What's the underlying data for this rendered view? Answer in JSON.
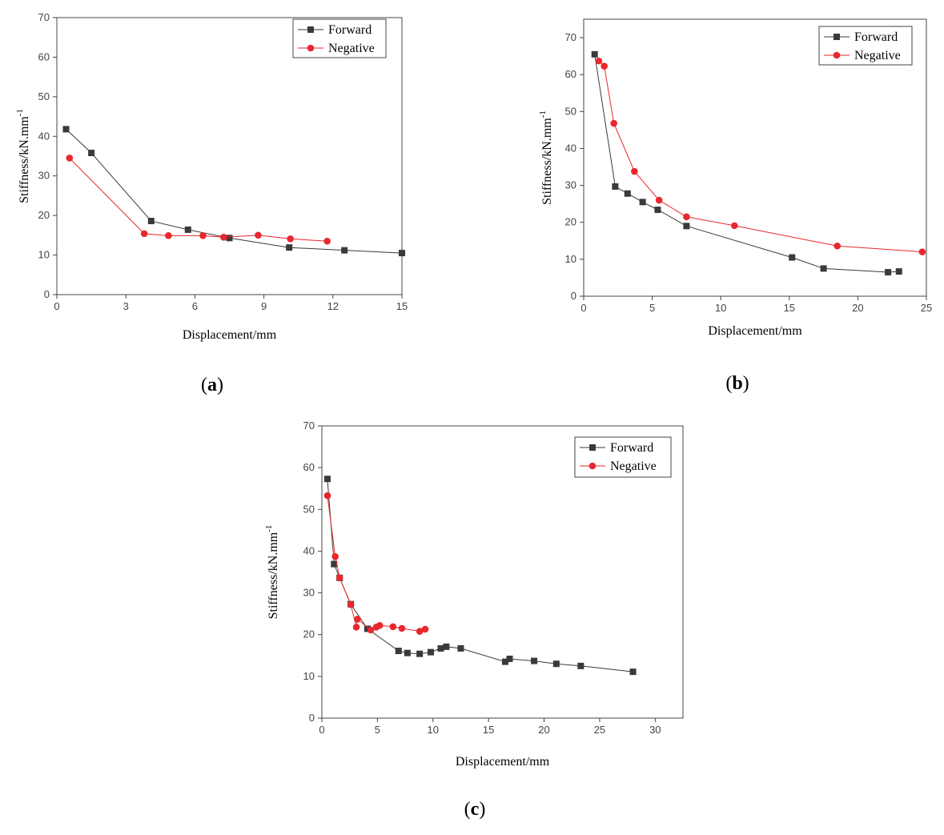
{
  "colors": {
    "forward": "#3a3a3a",
    "negative": "#e8272e",
    "axis": "#444444"
  },
  "chart_data": [
    {
      "id": "a",
      "type": "line",
      "caption_letter": "a",
      "xlabel": "Displacement/mm",
      "ylabel": "Stiffness/kN.mm",
      "ylabel_sup": "-1",
      "xlim": [
        0,
        15
      ],
      "ylim": [
        0,
        70
      ],
      "xticks": [
        "0",
        "3",
        "6",
        "9",
        "12",
        "15"
      ],
      "yticks": [
        "0",
        "10",
        "20",
        "30",
        "40",
        "50",
        "60",
        "70"
      ],
      "legend": [
        "Forward",
        "Negative"
      ],
      "series": [
        {
          "name": "Forward",
          "marker": "square",
          "x": [
            0.4,
            1.5,
            4.1,
            5.7,
            7.5,
            10.1,
            12.5,
            15.0
          ],
          "y": [
            41.8,
            35.8,
            18.6,
            16.4,
            14.3,
            11.9,
            11.2,
            10.5
          ]
        },
        {
          "name": "Negative",
          "marker": "circle",
          "x": [
            0.55,
            3.8,
            4.85,
            6.35,
            7.25,
            8.75,
            10.15,
            11.75
          ],
          "y": [
            34.5,
            15.4,
            14.9,
            14.9,
            14.5,
            15.0,
            14.1,
            13.5
          ]
        }
      ]
    },
    {
      "id": "b",
      "type": "line",
      "caption_letter": "b",
      "xlabel": "Displacement/mm",
      "ylabel": "Stiffness/kN.mm",
      "ylabel_sup": "-1",
      "xlim": [
        0,
        25
      ],
      "ylim": [
        0,
        75
      ],
      "xticks": [
        "0",
        "5",
        "10",
        "15",
        "20",
        "25"
      ],
      "yticks": [
        "0",
        "10",
        "20",
        "30",
        "40",
        "50",
        "60",
        "70"
      ],
      "legend": [
        "Forward",
        "Negative"
      ],
      "series": [
        {
          "name": "Forward",
          "marker": "square",
          "x": [
            0.8,
            2.3,
            3.2,
            4.3,
            5.4,
            7.5,
            15.2,
            17.5,
            22.2,
            23.0
          ],
          "y": [
            65.5,
            29.7,
            27.8,
            25.5,
            23.4,
            19.0,
            10.5,
            7.5,
            6.5,
            6.7
          ]
        },
        {
          "name": "Negative",
          "marker": "circle",
          "x": [
            1.1,
            1.5,
            2.2,
            3.7,
            5.5,
            7.5,
            11.0,
            18.5,
            24.7
          ],
          "y": [
            63.7,
            62.3,
            46.8,
            33.8,
            26.0,
            21.5,
            19.1,
            13.6,
            12.0
          ]
        }
      ]
    },
    {
      "id": "c",
      "type": "line",
      "caption_letter": "c",
      "xlabel": "Displacement/mm",
      "ylabel": "Stiffness/kN.mm",
      "ylabel_sup": "-1",
      "xlim": [
        0,
        32.5
      ],
      "ylim": [
        0,
        70
      ],
      "xticks": [
        "0",
        "5",
        "10",
        "15",
        "20",
        "25",
        "30"
      ],
      "yticks": [
        "0",
        "10",
        "20",
        "30",
        "40",
        "50",
        "60",
        "70"
      ],
      "legend": [
        "Forward",
        "Negative"
      ],
      "series": [
        {
          "name": "Forward",
          "marker": "square",
          "x": [
            0.5,
            1.1,
            1.6,
            2.6,
            4.1,
            6.9,
            7.7,
            8.8,
            9.8,
            10.7,
            11.2,
            12.5,
            16.5,
            16.9,
            19.1,
            21.1,
            23.3,
            28.0
          ],
          "y": [
            57.3,
            36.9,
            33.6,
            27.3,
            21.4,
            16.1,
            15.6,
            15.4,
            15.8,
            16.7,
            17.1,
            16.7,
            13.5,
            14.2,
            13.7,
            13.0,
            12.5,
            11.1
          ]
        },
        {
          "name": "Negative",
          "marker": "circle",
          "x": [
            0.5,
            1.2,
            1.6,
            2.6,
            3.1,
            3.2,
            4.4,
            4.9,
            5.2,
            6.4,
            7.2,
            8.8,
            9.3
          ],
          "y": [
            53.3,
            38.7,
            33.6,
            27.2,
            21.8,
            23.7,
            21.1,
            21.8,
            22.2,
            21.9,
            21.5,
            20.8,
            21.3
          ]
        }
      ]
    }
  ]
}
